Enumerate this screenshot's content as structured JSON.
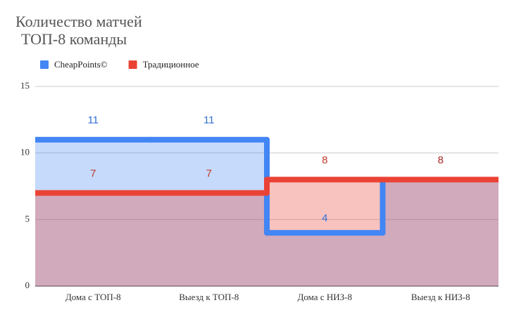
{
  "chart_data": {
    "type": "stepped-area",
    "title": [
      "Количество матчей",
      "ТОП-8 команды"
    ],
    "categories": [
      "Дома с ТОП-8",
      "Выезд к ТОП-8",
      "Дома с НИЗ-8",
      "Выезд к НИЗ-8"
    ],
    "series": [
      {
        "name": "CheapPoints©",
        "color": "#4285f4",
        "values": [
          11,
          11,
          4,
          8
        ]
      },
      {
        "name": "Традиционное",
        "color": "#ea4335",
        "values": [
          7,
          7,
          8,
          8
        ]
      }
    ],
    "ylim": [
      0,
      15
    ],
    "yticks": [
      0,
      5,
      10,
      15
    ],
    "grid": true,
    "legend": "top"
  }
}
